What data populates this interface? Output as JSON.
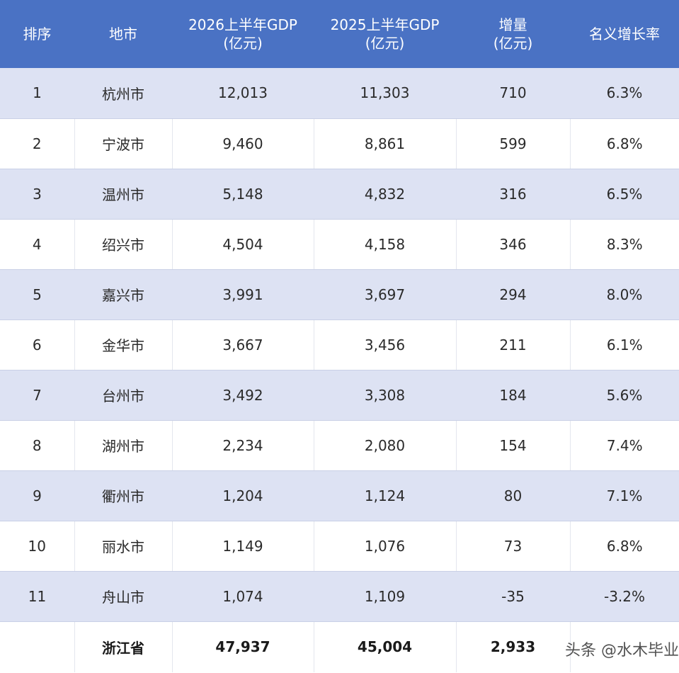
{
  "headers": {
    "rank": "排序",
    "city": "地市",
    "gdp2026_line1": "2026上半年GDP",
    "gdp2026_line2": "(亿元)",
    "gdp2025_line1": "2025上半年GDP",
    "gdp2025_line2": "(亿元)",
    "increase_line1": "增量",
    "increase_line2": "(亿元)",
    "growth": "名义增长率"
  },
  "rows": [
    {
      "rank": "1",
      "city": "杭州市",
      "gdp2026": "12,013",
      "gdp2025": "11,303",
      "increase": "710",
      "growth": "6.3%"
    },
    {
      "rank": "2",
      "city": "宁波市",
      "gdp2026": "9,460",
      "gdp2025": "8,861",
      "increase": "599",
      "growth": "6.8%"
    },
    {
      "rank": "3",
      "city": "温州市",
      "gdp2026": "5,148",
      "gdp2025": "4,832",
      "increase": "316",
      "growth": "6.5%"
    },
    {
      "rank": "4",
      "city": "绍兴市",
      "gdp2026": "4,504",
      "gdp2025": "4,158",
      "increase": "346",
      "growth": "8.3%"
    },
    {
      "rank": "5",
      "city": "嘉兴市",
      "gdp2026": "3,991",
      "gdp2025": "3,697",
      "increase": "294",
      "growth": "8.0%"
    },
    {
      "rank": "6",
      "city": "金华市",
      "gdp2026": "3,667",
      "gdp2025": "3,456",
      "increase": "211",
      "growth": "6.1%"
    },
    {
      "rank": "7",
      "city": "台州市",
      "gdp2026": "3,492",
      "gdp2025": "3,308",
      "increase": "184",
      "growth": "5.6%"
    },
    {
      "rank": "8",
      "city": "湖州市",
      "gdp2026": "2,234",
      "gdp2025": "2,080",
      "increase": "154",
      "growth": "7.4%"
    },
    {
      "rank": "9",
      "city": "衢州市",
      "gdp2026": "1,204",
      "gdp2025": "1,124",
      "increase": "80",
      "growth": "7.1%"
    },
    {
      "rank": "10",
      "city": "丽水市",
      "gdp2026": "1,149",
      "gdp2025": "1,076",
      "increase": "73",
      "growth": "6.8%"
    },
    {
      "rank": "11",
      "city": "舟山市",
      "gdp2026": "1,074",
      "gdp2025": "1,109",
      "increase": "-35",
      "growth": "-3.2%"
    }
  ],
  "total": {
    "rank": "",
    "city": "浙江省",
    "gdp2026": "47,937",
    "gdp2025": "45,004",
    "increase": "2,933"
  },
  "watermark": "头条 @水木毕业",
  "colors": {
    "header_bg": "#4a72c4",
    "row_alt_bg": "#dde2f3"
  }
}
